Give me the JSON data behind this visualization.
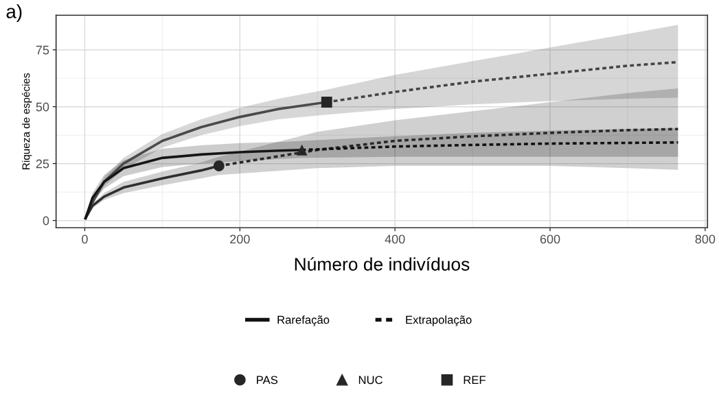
{
  "chart_data": {
    "type": "line",
    "xlabel": "Número de indivíduos",
    "ylabel": "Riqueza de espécies",
    "annotations": [
      "a)",
      "Rarefação",
      "Extrapolação"
    ],
    "xlim": [
      -37,
      803
    ],
    "ylim": [
      -3.2,
      90.2
    ],
    "xticks": [
      0,
      200,
      400,
      600,
      800
    ],
    "yticks": [
      0,
      25,
      50,
      75
    ],
    "grid": true,
    "legend": "bottom",
    "series": [
      {
        "color": "#4a4a4a",
        "line_style": "solid",
        "x": [
          1,
          10,
          25,
          50,
          100,
          150,
          200,
          250,
          312
        ],
        "values": [
          1,
          8,
          17,
          25,
          35,
          41,
          45.5,
          49,
          52
        ],
        "lower": [
          1,
          7,
          15,
          22.5,
          32,
          37.5,
          41.5,
          44.5,
          46.5
        ],
        "upper": [
          1,
          9,
          19,
          27.5,
          38,
          44.5,
          49.5,
          53.5,
          57.5
        ]
      },
      {
        "color": "#444444",
        "line_style": "dashed",
        "x": [
          312,
          400,
          500,
          600,
          700,
          765
        ],
        "values": [
          52,
          56.5,
          61,
          64.5,
          68,
          69.6
        ],
        "lower": [
          46.5,
          49,
          51,
          52.5,
          53.5,
          54
        ],
        "upper": [
          57.5,
          64,
          70,
          76,
          82,
          86
        ]
      },
      {
        "color": "#2e2e2e",
        "line_style": "solid",
        "x": [
          1,
          10,
          25,
          50,
          100,
          150,
          173
        ],
        "values": [
          1,
          6.5,
          10.5,
          14.5,
          18.5,
          22,
          24
        ],
        "lower": [
          1,
          5.5,
          9,
          12,
          15.5,
          18.5,
          20
        ],
        "upper": [
          1,
          7.5,
          12,
          17,
          21.5,
          25.5,
          28
        ]
      },
      {
        "color": "#282828",
        "line_style": "dashed",
        "x": [
          173,
          300,
          400,
          500,
          600,
          700,
          765
        ],
        "values": [
          24,
          31,
          35,
          37,
          38.5,
          39.7,
          40.2
        ],
        "lower": [
          20,
          23,
          24,
          24,
          24,
          23,
          22.3
        ],
        "upper": [
          28,
          39,
          44,
          48,
          52,
          56,
          58
        ]
      },
      {
        "color": "#161616",
        "line_style": "solid",
        "x": [
          1,
          10,
          25,
          50,
          100,
          150,
          200,
          250,
          280
        ],
        "values": [
          1,
          10,
          17,
          23,
          27.5,
          29,
          30,
          30.7,
          31
        ],
        "lower": [
          1,
          8,
          14,
          19.5,
          23.5,
          25,
          26,
          27,
          27.5
        ],
        "upper": [
          1,
          12,
          20,
          26.5,
          31.5,
          33,
          34,
          34.5,
          35
        ]
      },
      {
        "color": "#101010",
        "line_style": "dashed",
        "x": [
          280,
          400,
          500,
          600,
          700,
          765
        ],
        "values": [
          31,
          32.5,
          33.2,
          33.8,
          34.1,
          34.3
        ],
        "lower": [
          27.5,
          28,
          28,
          28,
          28,
          28
        ],
        "upper": [
          35,
          37,
          38.5,
          39.5,
          40.2,
          40.6
        ]
      },
      {
        "type": "scatter",
        "name": "PAS",
        "color": "#262626",
        "marker": "circle",
        "x": [
          173
        ],
        "values": [
          24
        ]
      },
      {
        "type": "scatter",
        "name": "NUC",
        "color": "#262626",
        "marker": "triangle",
        "x": [
          280
        ],
        "values": [
          31
        ]
      },
      {
        "type": "scatter",
        "name": "REF",
        "color": "#262626",
        "marker": "square",
        "x": [
          312
        ],
        "values": [
          52
        ]
      }
    ]
  }
}
